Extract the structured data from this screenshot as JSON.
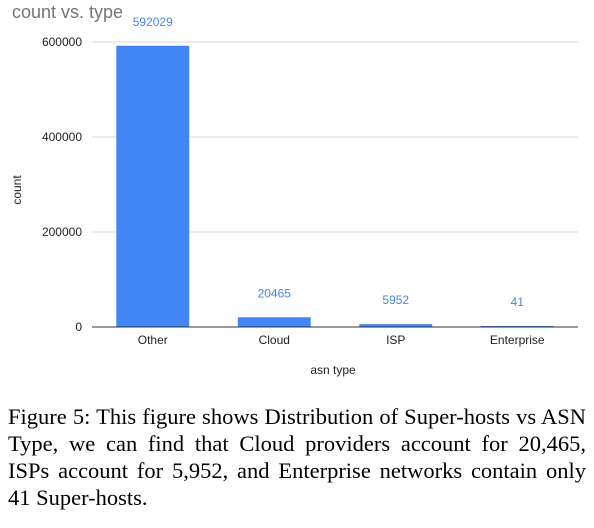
{
  "chart_data": {
    "type": "bar",
    "title": "count vs. type",
    "xlabel": "asn type",
    "ylabel": "count",
    "categories": [
      "Other",
      "Cloud",
      "ISP",
      "Enterprise"
    ],
    "values": [
      592029,
      20465,
      5952,
      41
    ],
    "data_labels": [
      "592029",
      "20465",
      "5952",
      "41"
    ],
    "ylim": [
      0,
      600000
    ],
    "yticks": [
      0,
      200000,
      400000,
      600000
    ],
    "ytick_labels": [
      "0",
      "200000",
      "400000",
      "600000"
    ],
    "grid": true,
    "legend": "none",
    "bar_color": "#4285f4",
    "label_color": "#4a86e8"
  },
  "caption": {
    "prefix": "Figure 5:",
    "text": "This figure shows Distribution of Super-hosts vs ASN Type, we can find that Cloud providers account for 20,465, ISPs account for 5,952, and Enterprise networks contain only 41 Super-hosts."
  }
}
